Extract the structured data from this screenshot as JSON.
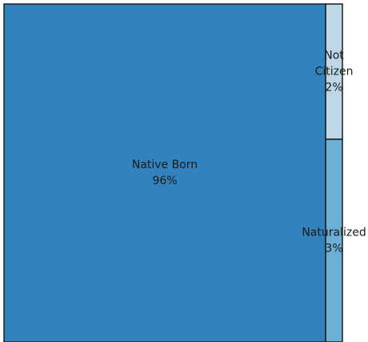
{
  "chart_data": {
    "type": "treemap",
    "title": "",
    "tiles": [
      {
        "name": "Native Born",
        "label_lines": [
          "Native Born",
          "96%"
        ],
        "value": 96,
        "color": "#3282bd"
      },
      {
        "name": "Not Citizen",
        "label_lines": [
          "Not",
          "Citizen",
          "2%"
        ],
        "value": 2,
        "color": "#bdd7e7"
      },
      {
        "name": "Naturalized",
        "label_lines": [
          "Naturalized",
          "3%"
        ],
        "value": 3,
        "color": "#6baed6"
      }
    ]
  }
}
